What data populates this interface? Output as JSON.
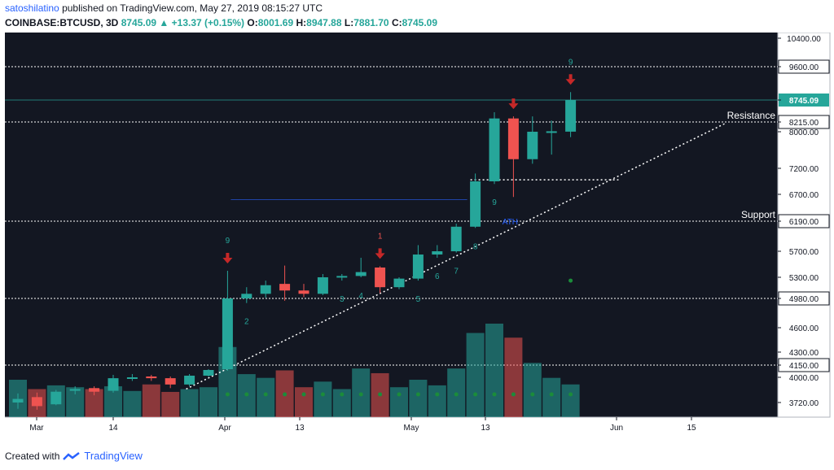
{
  "header": {
    "author": "satoshilatino",
    "published": "published on TradingView.com, May 27, 2019 08:15:27 UTC",
    "symbol": "COINBASE:BTCUSD, 3D",
    "last": "8745.09",
    "change": "+13.37 (+0.15%)",
    "o_label": "O:",
    "o": "8001.69",
    "h_label": "H:",
    "h": "8947.88",
    "l_label": "L:",
    "l": "7881.70",
    "c_label": "C:",
    "c": "8745.09"
  },
  "footer": {
    "created_with": "Created with",
    "brand": "TradingView"
  },
  "colors": {
    "background": "#131722",
    "up": "#26a69a",
    "down": "#ef5350",
    "grid_line": "#ffffff",
    "axis_bg": "#ffffff"
  },
  "chart_data": {
    "type": "candlestick",
    "price_axis_ticks": [
      "10400.00",
      "9600.00",
      "8745.09",
      "8215.00",
      "8000.00",
      "7200.00",
      "6700.00",
      "6190.00",
      "5700.00",
      "5300.00",
      "4980.00",
      "4600.00",
      "4300.00",
      "4150.00",
      "4000.00",
      "3720.00"
    ],
    "price_axis_tick_values": [
      10400,
      9600,
      8745.09,
      8215,
      8000,
      7200,
      6700,
      6190,
      5700,
      5300,
      4980,
      4600,
      4300,
      4150,
      4000,
      3720
    ],
    "price_axis_highlighted": [
      "9600.00",
      "8745.09",
      "8215.00",
      "6190.00",
      "4980.00",
      "4150.00"
    ],
    "time_axis_labels": [
      "Mar",
      "14",
      "Apr",
      "13",
      "May",
      "13",
      "Jun",
      "15"
    ],
    "horizontal_levels": [
      9600,
      8215,
      6190,
      4980,
      4150
    ],
    "level_labels": [
      {
        "text": "Resistance",
        "price": 8215
      },
      {
        "text": "Support",
        "price": 6190
      }
    ],
    "candles": [
      {
        "o": 3720,
        "h": 3820,
        "l": 3650,
        "c": 3760,
        "vol": 0.4
      },
      {
        "o": 3780,
        "h": 3830,
        "l": 3640,
        "c": 3680,
        "vol": 0.3
      },
      {
        "o": 3700,
        "h": 3860,
        "l": 3690,
        "c": 3840,
        "vol": 0.34
      },
      {
        "o": 3850,
        "h": 3900,
        "l": 3810,
        "c": 3870,
        "vol": 0.32
      },
      {
        "o": 3880,
        "h": 3900,
        "l": 3800,
        "c": 3840,
        "vol": 0.3
      },
      {
        "o": 3850,
        "h": 4030,
        "l": 3830,
        "c": 3990,
        "vol": 0.33
      },
      {
        "o": 3990,
        "h": 4040,
        "l": 3960,
        "c": 4000,
        "vol": 0.28
      },
      {
        "o": 4010,
        "h": 4030,
        "l": 3960,
        "c": 3990,
        "vol": 0.35
      },
      {
        "o": 3990,
        "h": 4010,
        "l": 3880,
        "c": 3920,
        "vol": 0.27
      },
      {
        "o": 3920,
        "h": 4040,
        "l": 3900,
        "c": 4020,
        "vol": 0.3
      },
      {
        "o": 4020,
        "h": 4100,
        "l": 4010,
        "c": 4090,
        "vol": 0.32
      },
      {
        "o": 4100,
        "h": 5400,
        "l": 4080,
        "c": 4980,
        "vol": 0.75
      },
      {
        "o": 4980,
        "h": 5150,
        "l": 4920,
        "c": 5050,
        "vol": 0.46
      },
      {
        "o": 5050,
        "h": 5250,
        "l": 4990,
        "c": 5180,
        "vol": 0.42
      },
      {
        "o": 5200,
        "h": 5480,
        "l": 4950,
        "c": 5100,
        "vol": 0.5
      },
      {
        "o": 5100,
        "h": 5200,
        "l": 5000,
        "c": 5050,
        "vol": 0.32
      },
      {
        "o": 5050,
        "h": 5350,
        "l": 5030,
        "c": 5300,
        "vol": 0.38
      },
      {
        "o": 5300,
        "h": 5350,
        "l": 5250,
        "c": 5320,
        "vol": 0.3
      },
      {
        "o": 5320,
        "h": 5600,
        "l": 5300,
        "c": 5380,
        "vol": 0.52
      },
      {
        "o": 5450,
        "h": 5470,
        "l": 5060,
        "c": 5150,
        "vol": 0.47
      },
      {
        "o": 5150,
        "h": 5300,
        "l": 5120,
        "c": 5280,
        "vol": 0.32
      },
      {
        "o": 5280,
        "h": 5800,
        "l": 5250,
        "c": 5650,
        "vol": 0.4
      },
      {
        "o": 5650,
        "h": 5800,
        "l": 5600,
        "c": 5700,
        "vol": 0.34
      },
      {
        "o": 5700,
        "h": 6150,
        "l": 5680,
        "c": 6100,
        "vol": 0.52
      },
      {
        "o": 6100,
        "h": 7100,
        "l": 6080,
        "c": 6950,
        "vol": 0.9
      },
      {
        "o": 6950,
        "h": 8450,
        "l": 6900,
        "c": 8300,
        "vol": 1.0
      },
      {
        "o": 8300,
        "h": 8350,
        "l": 6650,
        "c": 7400,
        "vol": 0.85
      },
      {
        "o": 7400,
        "h": 8350,
        "l": 7300,
        "c": 8000,
        "vol": 0.58
      },
      {
        "o": 8000,
        "h": 8250,
        "l": 7500,
        "c": 8010,
        "vol": 0.42
      },
      {
        "o": 8001.69,
        "h": 8947.88,
        "l": 7881.7,
        "c": 8745.09,
        "vol": 0.35
      }
    ],
    "td_counts": [
      {
        "text": "9",
        "candle": 11,
        "pos": "above",
        "color": "#26a69a"
      },
      {
        "text": "1",
        "candle": 19,
        "pos": "above",
        "color": "#ef5350"
      },
      {
        "text": "3",
        "candle": 17,
        "pos": "below",
        "color": "#26a69a"
      },
      {
        "text": "4",
        "candle": 18,
        "pos": "below",
        "color": "#26a69a"
      },
      {
        "text": "5",
        "candle": 21,
        "pos": "below",
        "color": "#26a69a"
      },
      {
        "text": "6",
        "candle": 22,
        "pos": "below",
        "color": "#26a69a"
      },
      {
        "text": "7",
        "candle": 23,
        "pos": "below",
        "color": "#26a69a"
      },
      {
        "text": "8",
        "candle": 24,
        "pos": "below",
        "color": "#26a69a"
      },
      {
        "text": "9",
        "candle": 25,
        "pos": "below",
        "color": "#26a69a"
      },
      {
        "text": "9",
        "candle": 29,
        "pos": "above",
        "color": "#26a69a"
      },
      {
        "text": "2",
        "candle": 12,
        "pos": "below",
        "color": "#26a69a"
      }
    ],
    "arrows": [
      11,
      19,
      26,
      29
    ],
    "ath_label": "ATH",
    "ylim": [
      3500,
      10600
    ]
  }
}
